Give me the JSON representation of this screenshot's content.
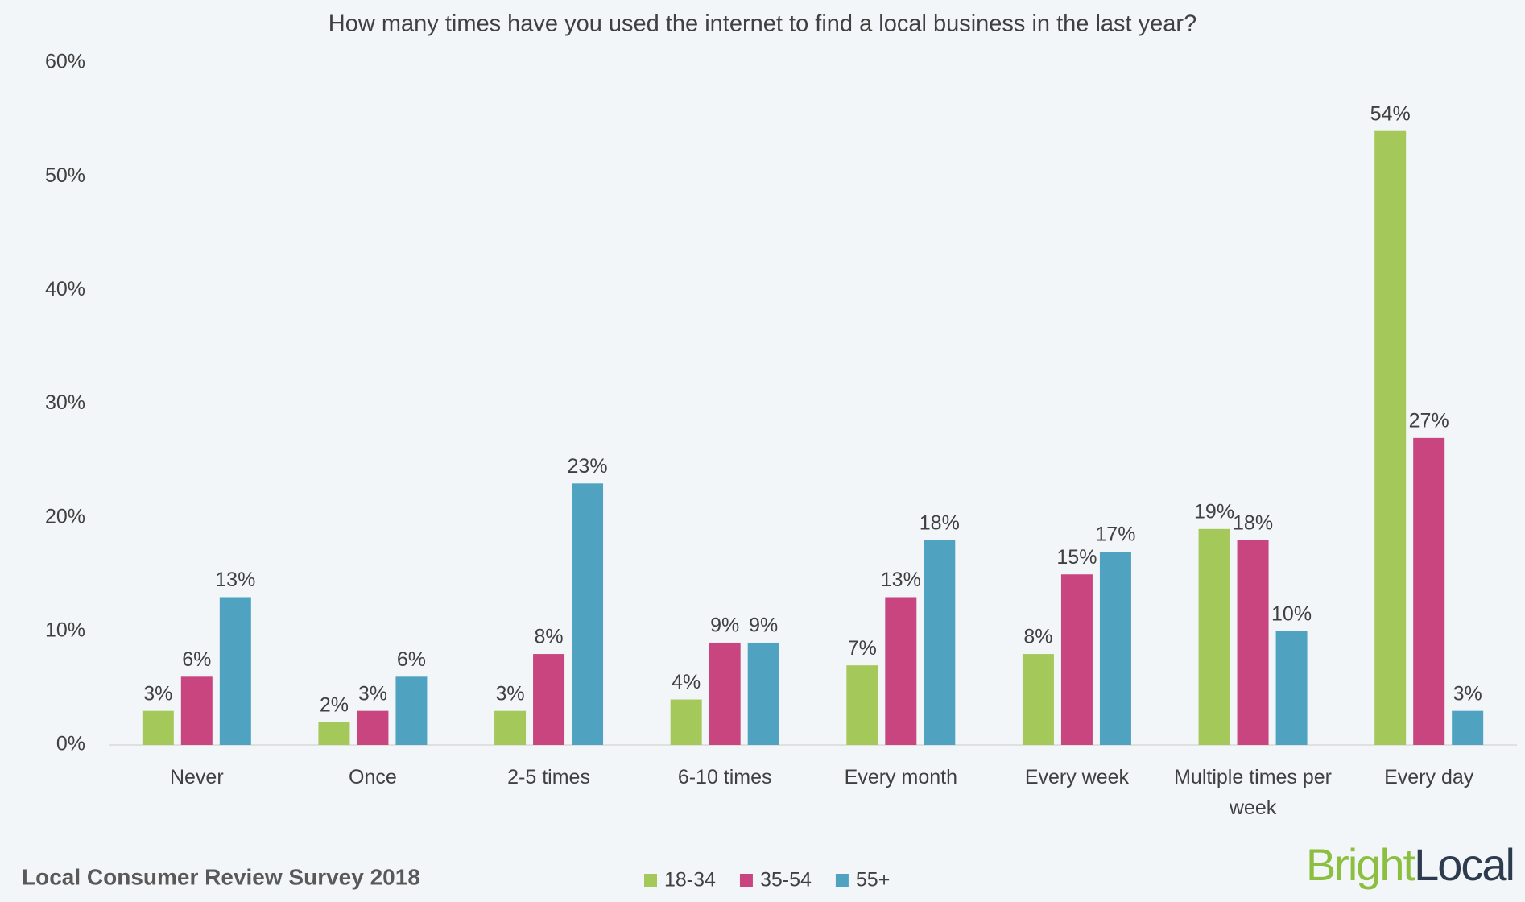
{
  "chart_data": {
    "type": "bar",
    "title": "How many times have you used the internet to find a local business in the last year?",
    "categories": [
      "Never",
      "Once",
      "2-5 times",
      "6-10 times",
      "Every month",
      "Every week",
      "Multiple times per week",
      "Every day"
    ],
    "series": [
      {
        "name": "18-34",
        "color": "#a5c85a",
        "values": [
          3,
          2,
          3,
          4,
          7,
          8,
          19,
          54
        ],
        "value_labels": [
          "3%",
          "2%",
          "3%",
          "4%",
          "7%",
          "8%",
          "19%",
          "54%"
        ]
      },
      {
        "name": "35-54",
        "color": "#c8457f",
        "values": [
          6,
          3,
          8,
          9,
          13,
          15,
          18,
          27
        ],
        "value_labels": [
          "6%",
          "3%",
          "8%",
          "9%",
          "13%",
          "15%",
          "18%",
          "27%"
        ]
      },
      {
        "name": "55+",
        "color": "#4fa3c0",
        "values": [
          13,
          6,
          23,
          9,
          18,
          17,
          10,
          3
        ],
        "value_labels": [
          "13%",
          "6%",
          "23%",
          "9%",
          "18%",
          "17%",
          "10%",
          "3%"
        ]
      }
    ],
    "ylim": [
      0,
      60
    ],
    "yticks": [
      {
        "value": 0,
        "label": "0%"
      },
      {
        "value": 10,
        "label": "10%"
      },
      {
        "value": 20,
        "label": "20%"
      },
      {
        "value": 30,
        "label": "30%"
      },
      {
        "value": 40,
        "label": "40%"
      },
      {
        "value": 50,
        "label": "50%"
      },
      {
        "value": 60,
        "label": "60%"
      }
    ],
    "grid": false,
    "legend": "bottom",
    "source": "Local Consumer Review Survey 2018",
    "logo": {
      "first": "Bright",
      "second": "Local"
    }
  }
}
